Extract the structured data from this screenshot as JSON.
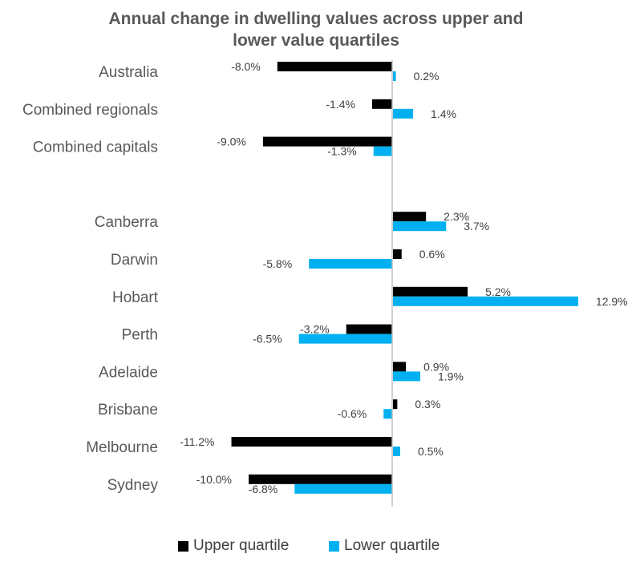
{
  "chart_data": {
    "type": "bar",
    "orientation": "horizontal",
    "title_lines": [
      "Annual change in dwelling values across upper and",
      "lower value quartiles"
    ],
    "categories": [
      "Australia",
      "Combined regionals",
      "Combined capitals",
      "",
      "Canberra",
      "Darwin",
      "Hobart",
      "Perth",
      "Adelaide",
      "Brisbane",
      "Melbourne",
      "Sydney"
    ],
    "series": [
      {
        "name": "Upper quartile",
        "color": "#000000",
        "values": [
          -8.0,
          -1.4,
          -9.0,
          null,
          2.3,
          0.6,
          5.2,
          -3.2,
          0.9,
          0.3,
          -11.2,
          -10.0
        ],
        "labels": [
          "-8.0%",
          "-1.4%",
          "-9.0%",
          "",
          "2.3%",
          "0.6%",
          "5.2%",
          "-3.2%",
          "0.9%",
          "0.3%",
          "-11.2%",
          "-10.0%"
        ]
      },
      {
        "name": "Lower quartile",
        "color": "#00B0F0",
        "values": [
          0.2,
          1.4,
          -1.3,
          null,
          3.7,
          -5.8,
          12.9,
          -6.5,
          1.9,
          -0.6,
          0.5,
          -6.8
        ],
        "labels": [
          "0.2%",
          "1.4%",
          "-1.3%",
          "",
          "3.7%",
          "-5.8%",
          "12.9%",
          "-6.5%",
          "1.9%",
          "-0.6%",
          "0.5%",
          "-6.8%"
        ]
      }
    ],
    "xlim": [
      -11.2,
      12.9
    ],
    "axis_color": "#BFBFBF",
    "category_label_color": "#595959",
    "data_label_color": "#404040",
    "grid": false,
    "legend": "bottom"
  }
}
